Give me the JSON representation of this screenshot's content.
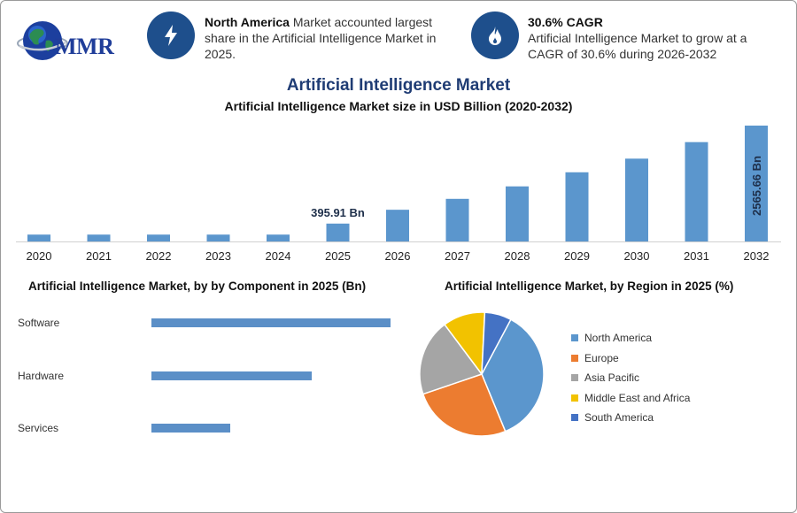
{
  "brand": {
    "logo_text": "MMR"
  },
  "header": {
    "stat1": {
      "bold": "North America",
      "text": " Market accounted largest share in the Artificial Intelligence Market in 2025."
    },
    "stat2": {
      "bold": "30.6% CAGR",
      "text": "Artificial Intelligence Market to grow at a CAGR of 30.6% during 2026-2032"
    }
  },
  "titles": {
    "main": "Artificial Intelligence Market",
    "sub": "Artificial Intelligence Market size in USD Billion (2020-2032)",
    "component": "Artificial Intelligence Market, by by Component in 2025 (Bn)",
    "region": "Artificial Intelligence Market, by Region in 2025 (%)"
  },
  "chart_data": [
    {
      "type": "bar",
      "categories": [
        "2020",
        "2021",
        "2022",
        "2023",
        "2024",
        "2025",
        "2026",
        "2027",
        "2028",
        "2029",
        "2030",
        "2031",
        "2032"
      ],
      "values": [
        152,
        152,
        152,
        152,
        152,
        395.91,
        702,
        944,
        1220,
        1532,
        1834,
        2200,
        2565.66
      ],
      "data_labels": {
        "2025": "395.91 Bn",
        "2032": "2565.66 Bn"
      },
      "color": "#5b96cd"
    },
    {
      "type": "bar",
      "orientation": "horizontal",
      "categories": [
        "Software",
        "Hardware",
        "Services"
      ],
      "values": [
        100,
        67,
        33
      ],
      "color": "#5b8fc7"
    },
    {
      "type": "pie",
      "labels": [
        "North America",
        "Europe",
        "Asia Pacific",
        "Middle East and Africa",
        "South America"
      ],
      "values": [
        36,
        26,
        20,
        11,
        7
      ],
      "colors": [
        "#5b96cd",
        "#ec7c30",
        "#a5a5a5",
        "#f2c200",
        "#4472c4"
      ]
    }
  ]
}
